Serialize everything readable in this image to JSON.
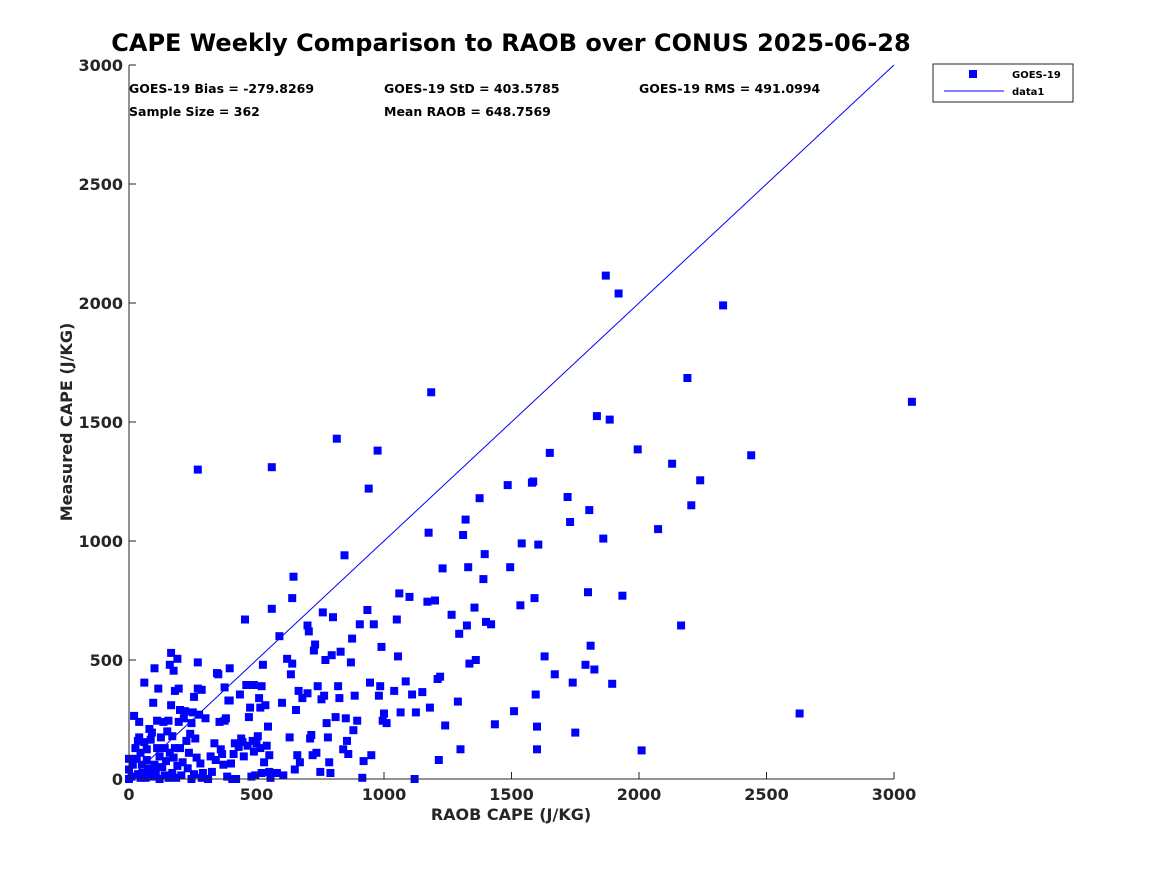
{
  "chart_data": {
    "type": "scatter",
    "title": "CAPE Weekly Comparison to RAOB over CONUS 2025-06-28",
    "xlabel": "RAOB CAPE (J/KG)",
    "ylabel": "Measured CAPE (J/KG)",
    "xlim": [
      0,
      3000
    ],
    "ylim": [
      0,
      3000
    ],
    "xticks": [
      "0",
      "500",
      "1000",
      "1500",
      "2000",
      "2500",
      "3000"
    ],
    "yticks": [
      "0",
      "500",
      "1000",
      "1500",
      "2000",
      "2500",
      "3000"
    ],
    "grid": false,
    "legend_position": "top-right-outside",
    "colors": {
      "series": "#0000ff",
      "line": "#0000ff"
    },
    "stats": {
      "bias": "GOES-19 Bias = -279.8269",
      "std": "GOES-19 StD = 403.5785",
      "rms": "GOES-19 RMS = 491.0994",
      "sample_size": "Sample Size = 362",
      "mean_raob": "Mean RAOB = 648.7569"
    },
    "series": [
      {
        "name": "GOES-19",
        "marker": "square",
        "points": [
          [
            0,
            0
          ],
          [
            0,
            40
          ],
          [
            0,
            85
          ],
          [
            10,
            10
          ],
          [
            15,
            60
          ],
          [
            20,
            265
          ],
          [
            25,
            130
          ],
          [
            30,
            85
          ],
          [
            35,
            20
          ],
          [
            35,
            160
          ],
          [
            40,
            175
          ],
          [
            40,
            240
          ],
          [
            45,
            5
          ],
          [
            45,
            110
          ],
          [
            50,
            60
          ],
          [
            55,
            25
          ],
          [
            60,
            405
          ],
          [
            60,
            155
          ],
          [
            65,
            5
          ],
          [
            70,
            80
          ],
          [
            70,
            125
          ],
          [
            75,
            45
          ],
          [
            80,
            15
          ],
          [
            80,
            210
          ],
          [
            85,
            165
          ],
          [
            90,
            10
          ],
          [
            90,
            195
          ],
          [
            95,
            320
          ],
          [
            100,
            465
          ],
          [
            100,
            60
          ],
          [
            105,
            30
          ],
          [
            110,
            130
          ],
          [
            110,
            245
          ],
          [
            115,
            380
          ],
          [
            120,
            0
          ],
          [
            120,
            95
          ],
          [
            125,
            175
          ],
          [
            130,
            50
          ],
          [
            135,
            240
          ],
          [
            140,
            15
          ],
          [
            140,
            130
          ],
          [
            145,
            75
          ],
          [
            150,
            200
          ],
          [
            155,
            245
          ],
          [
            155,
            5
          ],
          [
            160,
            480
          ],
          [
            160,
            110
          ],
          [
            165,
            530
          ],
          [
            165,
            310
          ],
          [
            170,
            25
          ],
          [
            170,
            180
          ],
          [
            175,
            90
          ],
          [
            175,
            455
          ],
          [
            180,
            130
          ],
          [
            180,
            370
          ],
          [
            185,
            5
          ],
          [
            190,
            505
          ],
          [
            190,
            55
          ],
          [
            195,
            240
          ],
          [
            195,
            380
          ],
          [
            200,
            130
          ],
          [
            200,
            290
          ],
          [
            205,
            15
          ],
          [
            210,
            70
          ],
          [
            215,
            255
          ],
          [
            220,
            285
          ],
          [
            225,
            160
          ],
          [
            230,
            45
          ],
          [
            235,
            110
          ],
          [
            240,
            190
          ],
          [
            245,
            0
          ],
          [
            245,
            235
          ],
          [
            250,
            280
          ],
          [
            255,
            345
          ],
          [
            255,
            20
          ],
          [
            260,
            170
          ],
          [
            265,
            90
          ],
          [
            270,
            1300
          ],
          [
            270,
            490
          ],
          [
            270,
            380
          ],
          [
            275,
            270
          ],
          [
            280,
            65
          ],
          [
            285,
            5
          ],
          [
            285,
            375
          ],
          [
            290,
            25
          ],
          [
            300,
            255
          ],
          [
            310,
            0
          ],
          [
            320,
            95
          ],
          [
            325,
            30
          ],
          [
            335,
            150
          ],
          [
            340,
            80
          ],
          [
            345,
            445
          ],
          [
            350,
            440
          ],
          [
            355,
            240
          ],
          [
            360,
            125
          ],
          [
            365,
            105
          ],
          [
            370,
            60
          ],
          [
            375,
            385
          ],
          [
            375,
            245
          ],
          [
            380,
            255
          ],
          [
            385,
            10
          ],
          [
            390,
            330
          ],
          [
            395,
            330
          ],
          [
            395,
            465
          ],
          [
            400,
            65
          ],
          [
            405,
            0
          ],
          [
            410,
            105
          ],
          [
            415,
            150
          ],
          [
            420,
            0
          ],
          [
            430,
            135
          ],
          [
            435,
            355
          ],
          [
            440,
            170
          ],
          [
            445,
            155
          ],
          [
            450,
            95
          ],
          [
            455,
            670
          ],
          [
            460,
            395
          ],
          [
            465,
            140
          ],
          [
            470,
            260
          ],
          [
            475,
            300
          ],
          [
            480,
            10
          ],
          [
            485,
            160
          ],
          [
            490,
            395
          ],
          [
            490,
            115
          ],
          [
            495,
            15
          ],
          [
            500,
            150
          ],
          [
            505,
            180
          ],
          [
            510,
            340
          ],
          [
            515,
            130
          ],
          [
            515,
            300
          ],
          [
            520,
            25
          ],
          [
            520,
            390
          ],
          [
            525,
            480
          ],
          [
            530,
            70
          ],
          [
            535,
            310
          ],
          [
            540,
            140
          ],
          [
            545,
            220
          ],
          [
            550,
            100
          ],
          [
            550,
            30
          ],
          [
            555,
            5
          ],
          [
            560,
            1310
          ],
          [
            560,
            715
          ],
          [
            580,
            25
          ],
          [
            590,
            600
          ],
          [
            600,
            320
          ],
          [
            605,
            15
          ],
          [
            620,
            505
          ],
          [
            630,
            175
          ],
          [
            635,
            440
          ],
          [
            640,
            760
          ],
          [
            640,
            485
          ],
          [
            645,
            850
          ],
          [
            650,
            40
          ],
          [
            655,
            290
          ],
          [
            660,
            100
          ],
          [
            665,
            370
          ],
          [
            670,
            70
          ],
          [
            680,
            340
          ],
          [
            700,
            645
          ],
          [
            700,
            360
          ],
          [
            705,
            620
          ],
          [
            710,
            170
          ],
          [
            715,
            185
          ],
          [
            720,
            100
          ],
          [
            725,
            540
          ],
          [
            730,
            565
          ],
          [
            735,
            110
          ],
          [
            740,
            390
          ],
          [
            750,
            30
          ],
          [
            755,
            335
          ],
          [
            760,
            700
          ],
          [
            765,
            350
          ],
          [
            770,
            500
          ],
          [
            775,
            235
          ],
          [
            780,
            175
          ],
          [
            785,
            70
          ],
          [
            790,
            25
          ],
          [
            795,
            520
          ],
          [
            800,
            680
          ],
          [
            810,
            260
          ],
          [
            815,
            1430
          ],
          [
            820,
            390
          ],
          [
            825,
            340
          ],
          [
            830,
            535
          ],
          [
            840,
            125
          ],
          [
            845,
            940
          ],
          [
            850,
            255
          ],
          [
            855,
            160
          ],
          [
            860,
            105
          ],
          [
            870,
            490
          ],
          [
            875,
            590
          ],
          [
            880,
            205
          ],
          [
            885,
            350
          ],
          [
            895,
            245
          ],
          [
            905,
            650
          ],
          [
            915,
            5
          ],
          [
            920,
            75
          ],
          [
            935,
            710
          ],
          [
            940,
            1220
          ],
          [
            945,
            405
          ],
          [
            950,
            100
          ],
          [
            960,
            650
          ],
          [
            975,
            1380
          ],
          [
            980,
            350
          ],
          [
            985,
            390
          ],
          [
            990,
            555
          ],
          [
            995,
            245
          ],
          [
            1000,
            275
          ],
          [
            1010,
            235
          ],
          [
            1040,
            370
          ],
          [
            1050,
            670
          ],
          [
            1055,
            515
          ],
          [
            1060,
            780
          ],
          [
            1065,
            280
          ],
          [
            1085,
            410
          ],
          [
            1100,
            765
          ],
          [
            1110,
            355
          ],
          [
            1120,
            0
          ],
          [
            1125,
            280
          ],
          [
            1150,
            365
          ],
          [
            1170,
            745
          ],
          [
            1175,
            1035
          ],
          [
            1180,
            300
          ],
          [
            1185,
            1625
          ],
          [
            1200,
            750
          ],
          [
            1210,
            420
          ],
          [
            1215,
            80
          ],
          [
            1220,
            430
          ],
          [
            1230,
            885
          ],
          [
            1240,
            225
          ],
          [
            1265,
            690
          ],
          [
            1290,
            325
          ],
          [
            1295,
            610
          ],
          [
            1300,
            125
          ],
          [
            1310,
            1025
          ],
          [
            1320,
            1090
          ],
          [
            1325,
            645
          ],
          [
            1330,
            890
          ],
          [
            1335,
            485
          ],
          [
            1355,
            720
          ],
          [
            1360,
            500
          ],
          [
            1375,
            1180
          ],
          [
            1390,
            840
          ],
          [
            1395,
            945
          ],
          [
            1400,
            660
          ],
          [
            1420,
            650
          ],
          [
            1435,
            230
          ],
          [
            1485,
            1235
          ],
          [
            1495,
            890
          ],
          [
            1510,
            285
          ],
          [
            1535,
            730
          ],
          [
            1540,
            990
          ],
          [
            1580,
            1245
          ],
          [
            1585,
            1250
          ],
          [
            1590,
            760
          ],
          [
            1595,
            355
          ],
          [
            1600,
            220
          ],
          [
            1600,
            125
          ],
          [
            1605,
            985
          ],
          [
            1630,
            515
          ],
          [
            1650,
            1370
          ],
          [
            1670,
            440
          ],
          [
            1720,
            1185
          ],
          [
            1730,
            1080
          ],
          [
            1740,
            405
          ],
          [
            1750,
            195
          ],
          [
            1790,
            480
          ],
          [
            1800,
            785
          ],
          [
            1805,
            1130
          ],
          [
            1810,
            560
          ],
          [
            1825,
            460
          ],
          [
            1835,
            1525
          ],
          [
            1860,
            1010
          ],
          [
            1870,
            2115
          ],
          [
            1885,
            1510
          ],
          [
            1895,
            400
          ],
          [
            1920,
            2040
          ],
          [
            1935,
            770
          ],
          [
            1995,
            1385
          ],
          [
            2010,
            120
          ],
          [
            2075,
            1050
          ],
          [
            2130,
            1325
          ],
          [
            2165,
            645
          ],
          [
            2190,
            1685
          ],
          [
            2205,
            1150
          ],
          [
            2240,
            1255
          ],
          [
            2330,
            1990
          ],
          [
            2440,
            1360
          ],
          [
            2630,
            275
          ],
          [
            3070,
            1585
          ]
        ]
      },
      {
        "name": "data1",
        "type": "line",
        "points": [
          [
            0,
            0
          ],
          [
            3000,
            3000
          ]
        ]
      }
    ]
  }
}
